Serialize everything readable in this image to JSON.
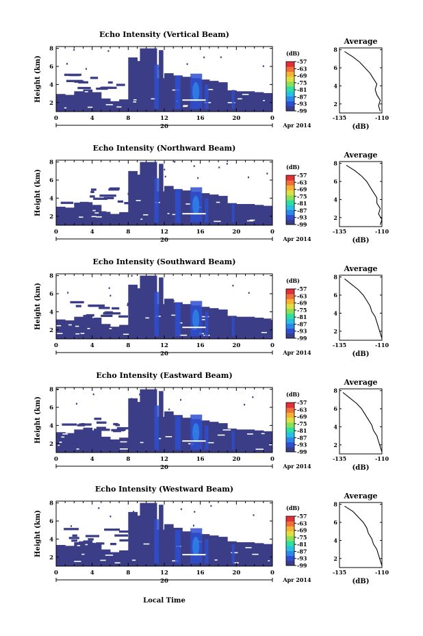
{
  "figure": {
    "xlabel": "Local Time",
    "date_label": "Apr 2014",
    "day_label": "20"
  },
  "colors": {
    "background_echo": "#3b3e86",
    "scale": [
      "#3b3e86",
      "#2f4fd0",
      "#2d86ea",
      "#27c0e0",
      "#2ee0a0",
      "#8be05a",
      "#dde040",
      "#f6b233",
      "#f0703a",
      "#e0303a"
    ]
  },
  "chart_data": [
    {
      "type": "heatmap",
      "title": "Echo Intensity (Vertical Beam)",
      "ylabel": "Height (km)",
      "xticks": [
        "0",
        "4",
        "8",
        "12",
        "16",
        "20",
        "0"
      ],
      "yticks": [
        "2",
        "4",
        "6",
        "8"
      ],
      "xlim": [
        0,
        24
      ],
      "ylim": [
        1,
        8.2
      ],
      "colorbar": {
        "unit": "(dB)",
        "ticks": [
          "-57",
          "-63",
          "-69",
          "-75",
          "-81",
          "-87",
          "-93",
          "-99"
        ]
      },
      "average": {
        "title": "Average",
        "xlabel": "(dB)",
        "xticks": [
          "-135",
          "-110"
        ],
        "xlim": [
          -135,
          -110
        ],
        "yticks": [
          "2",
          "4",
          "6",
          "8"
        ],
        "height": [
          1.2,
          1.8,
          2.4,
          3.0,
          3.6,
          4.2,
          4.8,
          5.4,
          6.0,
          6.6,
          7.2,
          7.8
        ],
        "value": [
          -111,
          -112,
          -111,
          -113,
          -114,
          -113,
          -115,
          -117,
          -120,
          -123,
          -127,
          -132
        ]
      }
    },
    {
      "type": "heatmap",
      "title": "Echo Intensity (Northward Beam)",
      "ylabel": "Height (km)",
      "xticks": [
        "0",
        "4",
        "8",
        "12",
        "16",
        "20",
        "0"
      ],
      "yticks": [
        "2",
        "4",
        "6",
        "8"
      ],
      "xlim": [
        0,
        24
      ],
      "ylim": [
        1,
        8.2
      ],
      "colorbar": {
        "unit": "(dB)",
        "ticks": [
          "-57",
          "-63",
          "-69",
          "-75",
          "-81",
          "-87",
          "-93",
          "-99"
        ]
      },
      "average": {
        "title": "Average",
        "xlabel": "(dB)",
        "xticks": [
          "-135",
          "-110"
        ],
        "xlim": [
          -135,
          -110
        ],
        "yticks": [
          "2",
          "4",
          "6",
          "8"
        ],
        "height": [
          1.2,
          1.8,
          2.4,
          3.0,
          3.6,
          4.2,
          4.8,
          5.4,
          6.0,
          6.6,
          7.2,
          7.8
        ],
        "value": [
          -111,
          -110,
          -112,
          -111,
          -113,
          -113,
          -115,
          -117,
          -119,
          -122,
          -126,
          -131
        ]
      }
    },
    {
      "type": "heatmap",
      "title": "Echo Intensity (Southward Beam)",
      "ylabel": "Height (km)",
      "xticks": [
        "0",
        "4",
        "8",
        "12",
        "16",
        "20",
        "0"
      ],
      "yticks": [
        "2",
        "4",
        "6",
        "8"
      ],
      "xlim": [
        0,
        24
      ],
      "ylim": [
        1,
        8.2
      ],
      "colorbar": {
        "unit": "(dB)",
        "ticks": [
          "-57",
          "-63",
          "-69",
          "-75",
          "-81",
          "-87",
          "-93",
          "-99"
        ]
      },
      "average": {
        "title": "Average",
        "xlabel": "(dB)",
        "xticks": [
          "-135",
          "-110"
        ],
        "xlim": [
          -135,
          -110
        ],
        "yticks": [
          "2",
          "4",
          "6",
          "8"
        ],
        "height": [
          1.2,
          1.8,
          2.4,
          3.0,
          3.6,
          4.2,
          4.8,
          5.4,
          6.0,
          6.6,
          7.2,
          7.8
        ],
        "value": [
          -110,
          -111,
          -112,
          -113,
          -114,
          -116,
          -117,
          -119,
          -121,
          -124,
          -128,
          -132
        ]
      }
    },
    {
      "type": "heatmap",
      "title": "Echo Intensity (Eastward Beam)",
      "ylabel": "Height (km)",
      "xticks": [
        "0",
        "4",
        "8",
        "12",
        "16",
        "20",
        "0"
      ],
      "yticks": [
        "2",
        "4",
        "6",
        "8"
      ],
      "xlim": [
        0,
        24
      ],
      "ylim": [
        1,
        8.2
      ],
      "colorbar": {
        "unit": "(dB)",
        "ticks": [
          "-57",
          "-63",
          "-69",
          "-75",
          "-81",
          "-87",
          "-93",
          "-99"
        ]
      },
      "average": {
        "title": "Average",
        "xlabel": "(dB)",
        "xticks": [
          "-135",
          "-110"
        ],
        "xlim": [
          -135,
          -110
        ],
        "yticks": [
          "2",
          "4",
          "6",
          "8"
        ],
        "height": [
          1.2,
          1.8,
          2.4,
          3.0,
          3.6,
          4.2,
          4.8,
          5.4,
          6.0,
          6.6,
          7.2,
          7.8
        ],
        "value": [
          -110,
          -111,
          -112,
          -113,
          -115,
          -116,
          -118,
          -120,
          -122,
          -125,
          -129,
          -133
        ]
      }
    },
    {
      "type": "heatmap",
      "title": "Echo Intensity (Westward Beam)",
      "ylabel": "Height (km)",
      "xticks": [
        "0",
        "4",
        "8",
        "12",
        "16",
        "20",
        "0"
      ],
      "yticks": [
        "2",
        "4",
        "6",
        "8"
      ],
      "xlim": [
        0,
        24
      ],
      "ylim": [
        1,
        8.2
      ],
      "colorbar": {
        "unit": "(dB)",
        "ticks": [
          "-57",
          "-63",
          "-69",
          "-75",
          "-81",
          "-87",
          "-93",
          "-99"
        ]
      },
      "average": {
        "title": "Average",
        "xlabel": "(dB)",
        "xticks": [
          "-135",
          "-110"
        ],
        "xlim": [
          -135,
          -110
        ],
        "yticks": [
          "2",
          "4",
          "6",
          "8"
        ],
        "height": [
          1.2,
          1.8,
          2.4,
          3.0,
          3.6,
          4.2,
          4.8,
          5.4,
          6.0,
          6.6,
          7.2,
          7.8
        ],
        "value": [
          -110,
          -111,
          -112,
          -113,
          -115,
          -116,
          -118,
          -119,
          -121,
          -124,
          -127,
          -132
        ]
      }
    }
  ]
}
